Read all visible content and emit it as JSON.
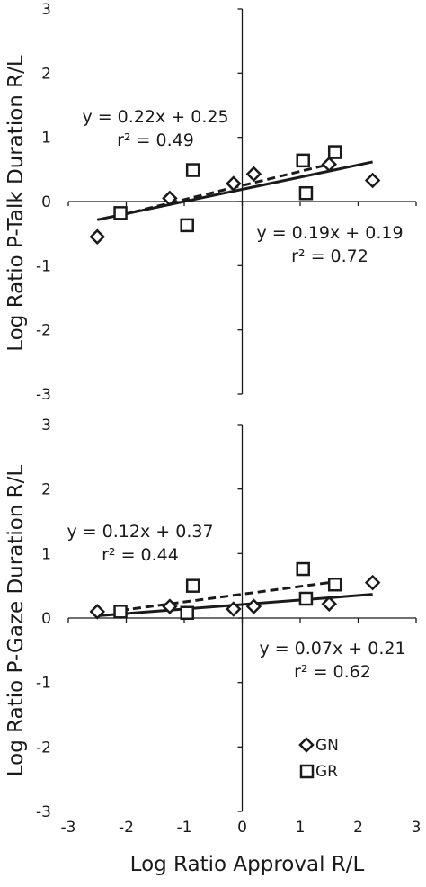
{
  "chart_data": [
    {
      "type": "scatter",
      "ylabel": "Log Ratio P-Talk Duration R/L",
      "xlim": [
        -3,
        3
      ],
      "ylim": [
        -3,
        3
      ],
      "x_ticks": [
        "-3",
        "-2",
        "-1",
        "0",
        "1",
        "2",
        "3"
      ],
      "y_ticks": [
        "-3",
        "-2",
        "-1",
        "0",
        "1",
        "2",
        "3"
      ],
      "series": [
        {
          "name": "GN",
          "marker": "diamond",
          "points": [
            [
              -2.5,
              -0.55
            ],
            [
              -1.25,
              0.05
            ],
            [
              -0.15,
              0.28
            ],
            [
              0.2,
              0.43
            ],
            [
              1.5,
              0.58
            ],
            [
              2.25,
              0.33
            ]
          ],
          "fit": {
            "slope": 0.19,
            "intercept": 0.19,
            "x_range": [
              -2.5,
              2.25
            ],
            "style": "solid"
          },
          "equation": "y = 0.19x + 0.19",
          "r2": "r² = 0.72"
        },
        {
          "name": "GR",
          "marker": "square",
          "points": [
            [
              -2.1,
              -0.18
            ],
            [
              -0.85,
              0.49
            ],
            [
              -0.95,
              -0.37
            ],
            [
              1.05,
              0.64
            ],
            [
              1.1,
              0.13
            ],
            [
              1.6,
              0.77
            ]
          ],
          "fit": {
            "slope": 0.22,
            "intercept": 0.25,
            "x_range": [
              -2.1,
              1.6
            ],
            "style": "dashed"
          },
          "equation": "y = 0.22x + 0.25",
          "r2": "r² = 0.49"
        }
      ]
    },
    {
      "type": "scatter",
      "ylabel": "Log Ratio P-Gaze Duration R/L",
      "xlabel": "Log Ratio Approval R/L",
      "xlim": [
        -3,
        3
      ],
      "ylim": [
        -3,
        3
      ],
      "x_ticks": [
        "-3",
        "-2",
        "-1",
        "0",
        "1",
        "2",
        "3"
      ],
      "y_ticks": [
        "-3",
        "-2",
        "-1",
        "0",
        "1",
        "2",
        "3"
      ],
      "legend": {
        "placement": "bottom-right",
        "entries": [
          "GN",
          "GR"
        ]
      },
      "series": [
        {
          "name": "GN",
          "marker": "diamond",
          "points": [
            [
              -2.5,
              0.1
            ],
            [
              -1.25,
              0.18
            ],
            [
              -0.15,
              0.14
            ],
            [
              0.2,
              0.18
            ],
            [
              1.5,
              0.22
            ],
            [
              2.25,
              0.55
            ]
          ],
          "fit": {
            "slope": 0.07,
            "intercept": 0.21,
            "x_range": [
              -2.5,
              2.25
            ],
            "style": "solid"
          },
          "equation": "y = 0.07x + 0.21",
          "r2": "r² = 0.62"
        },
        {
          "name": "GR",
          "marker": "square",
          "points": [
            [
              -2.1,
              0.1
            ],
            [
              -0.85,
              0.5
            ],
            [
              -0.95,
              0.08
            ],
            [
              1.05,
              0.76
            ],
            [
              1.1,
              0.3
            ],
            [
              1.6,
              0.52
            ]
          ],
          "fit": {
            "slope": 0.12,
            "intercept": 0.37,
            "x_range": [
              -2.1,
              1.6
            ],
            "style": "dashed"
          },
          "equation": "y = 0.12x + 0.37",
          "r2": "r² = 0.44"
        }
      ]
    }
  ]
}
